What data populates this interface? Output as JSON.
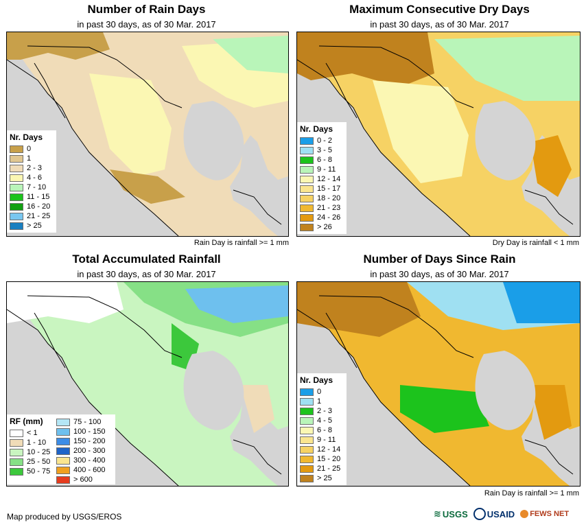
{
  "panels": [
    {
      "title": "Number of Rain Days",
      "subtitle": "in past 30 days, as of 30 Mar. 2017",
      "legend_title": "Nr. Days",
      "legend": [
        {
          "label": "0",
          "color": "#c8a04a"
        },
        {
          "label": "1",
          "color": "#e1c791"
        },
        {
          "label": "2 - 3",
          "color": "#f0dcb8"
        },
        {
          "label": "4 - 6",
          "color": "#fbf7b3"
        },
        {
          "label": "7 - 10",
          "color": "#b9f5b9"
        },
        {
          "label": "11 - 15",
          "color": "#1cc31c"
        },
        {
          "label": "16 - 20",
          "color": "#12a012"
        },
        {
          "label": "21 - 25",
          "color": "#79c7f0"
        },
        {
          "label": "> 25",
          "color": "#1a7fc0"
        }
      ],
      "note": "Rain Day is rainfall >= 1 mm"
    },
    {
      "title": "Maximum Consecutive Dry Days",
      "subtitle": "in past 30 days, as of 30 Mar. 2017",
      "legend_title": "Nr. Days",
      "legend": [
        {
          "label": "0 - 2",
          "color": "#1a9ee8"
        },
        {
          "label": "3 - 5",
          "color": "#9fe0f2"
        },
        {
          "label": "6 - 8",
          "color": "#1cc31c"
        },
        {
          "label": "9 - 11",
          "color": "#b9f5b9"
        },
        {
          "label": "12 - 14",
          "color": "#fbf7b3"
        },
        {
          "label": "15 - 17",
          "color": "#fae58f"
        },
        {
          "label": "18 - 20",
          "color": "#f6d264"
        },
        {
          "label": "21 - 23",
          "color": "#f0b830"
        },
        {
          "label": "24 - 26",
          "color": "#e39a10"
        },
        {
          "label": "> 26",
          "color": "#c0821e"
        }
      ],
      "note": "Dry Day is rainfall < 1 mm"
    },
    {
      "title": "Total Accumulated Rainfall",
      "subtitle": "in past 30 days, as of 30 Mar. 2017",
      "legend_title": "RF (mm)",
      "legend": [
        {
          "label": "< 1",
          "color": "#ffffff"
        },
        {
          "label": "1 - 10",
          "color": "#f0dcb8"
        },
        {
          "label": "10 - 25",
          "color": "#c9f5c0"
        },
        {
          "label": "25 - 50",
          "color": "#86e086"
        },
        {
          "label": "50 - 75",
          "color": "#3cc83c"
        }
      ],
      "legend2": [
        {
          "label": "75 - 100",
          "color": "#b4e6f5"
        },
        {
          "label": "100 - 150",
          "color": "#6ec0ee"
        },
        {
          "label": "150 - 200",
          "color": "#3c8ce6"
        },
        {
          "label": "200 - 300",
          "color": "#1e64c8"
        },
        {
          "label": "300 - 400",
          "color": "#fae58f"
        },
        {
          "label": "400 - 600",
          "color": "#f0a020"
        },
        {
          "label": "> 600",
          "color": "#e63c1e"
        }
      ],
      "note": ""
    },
    {
      "title": "Number of Days Since Rain",
      "subtitle": "in past 30 days, as of 30 Mar. 2017",
      "legend_title": "Nr. Days",
      "legend": [
        {
          "label": "0",
          "color": "#1a9ee8"
        },
        {
          "label": "1",
          "color": "#9fe0f2"
        },
        {
          "label": "2 - 3",
          "color": "#1cc31c"
        },
        {
          "label": "4 - 5",
          "color": "#b9f5b9"
        },
        {
          "label": "6 - 8",
          "color": "#fbf7b3"
        },
        {
          "label": "9 - 11",
          "color": "#fae58f"
        },
        {
          "label": "12 - 14",
          "color": "#f6d264"
        },
        {
          "label": "15 - 20",
          "color": "#f0b830"
        },
        {
          "label": "21 - 25",
          "color": "#e39a10"
        },
        {
          "label": "> 25",
          "color": "#c0821e"
        }
      ],
      "note": "Rain Day is rainfall >= 1 mm"
    }
  ],
  "footer": "Map produced by USGS/EROS",
  "logos": [
    "USGS",
    "USAID",
    "FEWS NET"
  ],
  "colors": {
    "ocean": "#d4d4d4",
    "border": "#000000"
  }
}
